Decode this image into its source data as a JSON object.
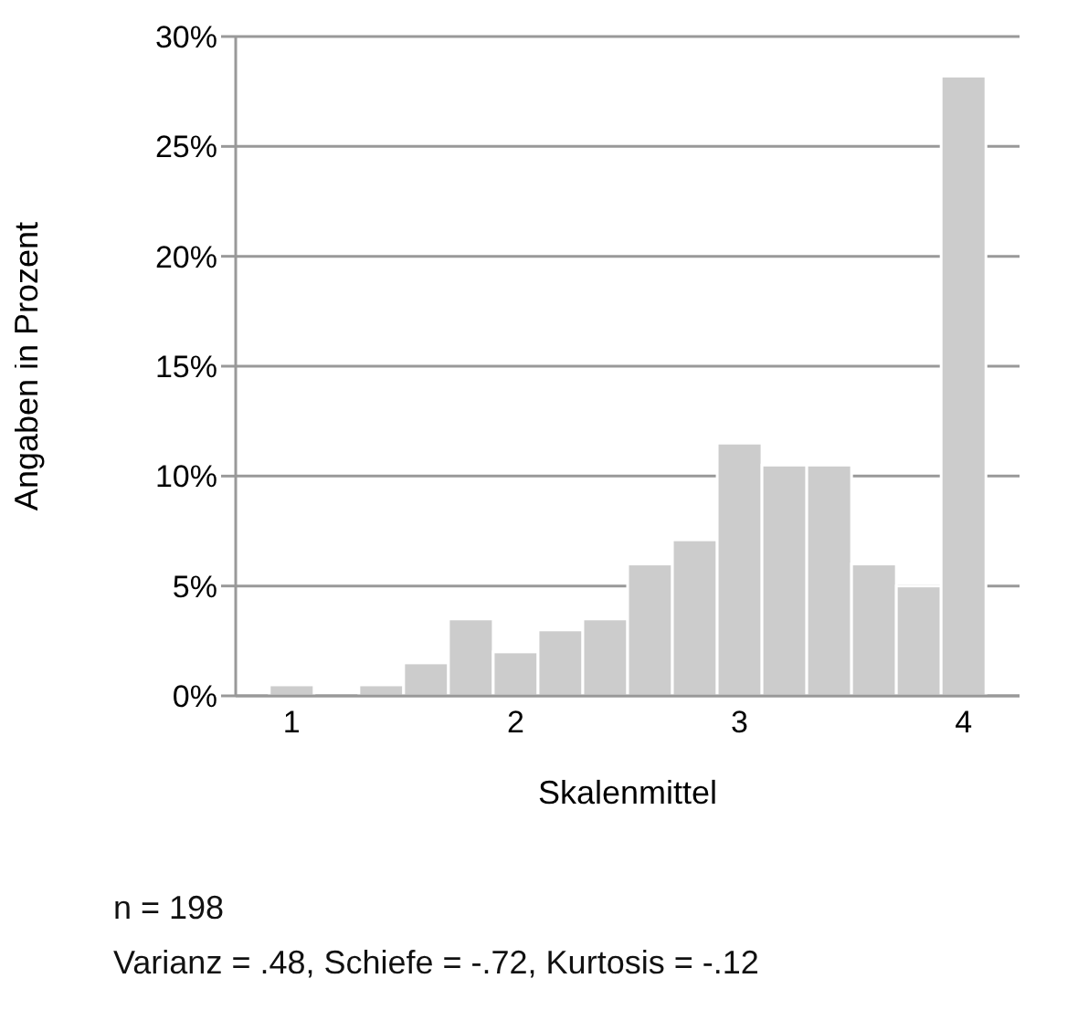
{
  "chart_data": {
    "type": "histogram",
    "xlabel": "Skalenmittel",
    "ylabel": "Angaben in Prozent",
    "bins": [
      0.9,
      1.1,
      1.3,
      1.5,
      1.7,
      1.9,
      2.1,
      2.3,
      2.5,
      2.7,
      2.9,
      3.1,
      3.3,
      3.5,
      3.7,
      3.9,
      4.1
    ],
    "values": [
      0.5,
      0,
      0.5,
      1.5,
      3.5,
      2.0,
      3.0,
      3.5,
      6.0,
      7.1,
      11.5,
      10.5,
      10.5,
      6.0,
      5.0,
      28.2
    ],
    "color": "#cccccc",
    "xlim": [
      0.75,
      4.25
    ],
    "xticks": [
      1,
      2,
      3,
      4
    ],
    "ylim": [
      0,
      30
    ],
    "yticks": [
      {
        "value": 0,
        "label": "0%"
      },
      {
        "value": 5,
        "label": "5%"
      },
      {
        "value": 10,
        "label": "10%"
      },
      {
        "value": 15,
        "label": "15%"
      },
      {
        "value": 20,
        "label": "20%"
      },
      {
        "value": 25,
        "label": "25%"
      },
      {
        "value": 30,
        "label": "30%"
      }
    ],
    "grid": "y",
    "annotations": [
      "n = 198",
      "Varianz = .48, Schiefe = -.72, Kurtosis = -.12"
    ]
  }
}
